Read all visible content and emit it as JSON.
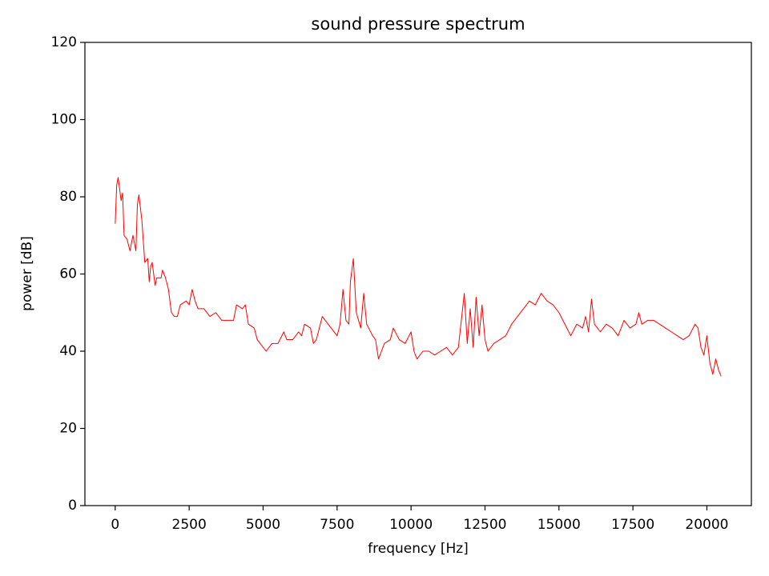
{
  "chart_data": {
    "type": "line",
    "title": "sound pressure spectrum",
    "x_label": "frequency [Hz]",
    "y_label": "power [dB]",
    "color": "#ff0000",
    "xlim": [
      -1024,
      21504
    ],
    "xticks": [
      0,
      2500,
      5000,
      7500,
      10000,
      12500,
      15000,
      17500,
      20000
    ],
    "ylim": [
      0,
      120
    ],
    "yticks": [
      0,
      20,
      40,
      60,
      80,
      100,
      120
    ],
    "x": [
      0,
      50,
      100,
      200,
      250,
      300,
      400,
      500,
      600,
      700,
      750,
      800,
      900,
      1000,
      1100,
      1150,
      1200,
      1250,
      1350,
      1400,
      1550,
      1600,
      1700,
      1800,
      1900,
      2000,
      2100,
      2200,
      2400,
      2500,
      2600,
      2700,
      2800,
      3000,
      3200,
      3400,
      3600,
      3800,
      4000,
      4100,
      4300,
      4400,
      4500,
      4700,
      4800,
      5000,
      5100,
      5300,
      5500,
      5700,
      5800,
      6000,
      6200,
      6300,
      6400,
      6600,
      6700,
      6800,
      7000,
      7100,
      7300,
      7500,
      7600,
      7700,
      7800,
      7900,
      7950,
      8050,
      8150,
      8300,
      8400,
      8500,
      8700,
      8800,
      8900,
      9100,
      9300,
      9400,
      9600,
      9800,
      10000,
      10100,
      10200,
      10400,
      10600,
      10800,
      11000,
      11200,
      11400,
      11600,
      11800,
      11900,
      12000,
      12100,
      12200,
      12300,
      12400,
      12500,
      12600,
      12800,
      13000,
      13200,
      13400,
      13600,
      13800,
      14000,
      14200,
      14400,
      14600,
      14800,
      15000,
      15200,
      15400,
      15600,
      15800,
      15900,
      16000,
      16100,
      16200,
      16400,
      16600,
      16800,
      17000,
      17200,
      17400,
      17600,
      17700,
      17800,
      18000,
      18200,
      18400,
      18600,
      18800,
      19000,
      19200,
      19400,
      19600,
      19700,
      19800,
      19900,
      20000,
      20100,
      20200,
      20300,
      20400,
      20480
    ],
    "values": [
      73,
      83,
      85,
      79,
      81,
      70,
      69,
      66,
      70,
      66,
      78,
      80.5,
      74,
      63,
      64,
      58,
      62,
      63,
      57,
      59,
      59,
      61,
      59,
      56,
      50,
      49,
      49,
      52,
      53,
      52,
      56,
      53,
      51,
      51,
      49,
      50,
      48,
      48,
      48,
      52,
      51,
      52,
      47,
      46,
      43,
      41,
      40,
      42,
      42,
      45,
      43,
      43,
      45,
      44,
      47,
      46,
      42,
      43,
      49,
      48,
      46,
      44,
      47,
      56,
      48,
      47,
      58,
      64,
      50,
      46,
      55,
      47,
      44,
      43,
      38,
      42,
      43,
      46,
      43,
      42,
      45,
      40,
      38,
      40,
      40,
      39,
      40,
      41,
      39,
      41,
      55,
      42,
      51,
      41,
      54,
      44,
      52,
      43,
      40,
      42,
      43,
      44,
      47,
      49,
      51,
      53,
      52,
      55,
      53,
      52,
      50,
      47,
      44,
      47,
      46,
      49,
      45,
      53.5,
      47,
      45,
      47,
      46,
      44,
      48,
      46,
      47,
      50,
      47,
      48,
      48,
      47,
      46,
      45,
      44,
      43,
      44,
      47,
      46,
      41,
      39,
      44,
      37,
      34,
      38,
      35,
      33.5
    ]
  }
}
